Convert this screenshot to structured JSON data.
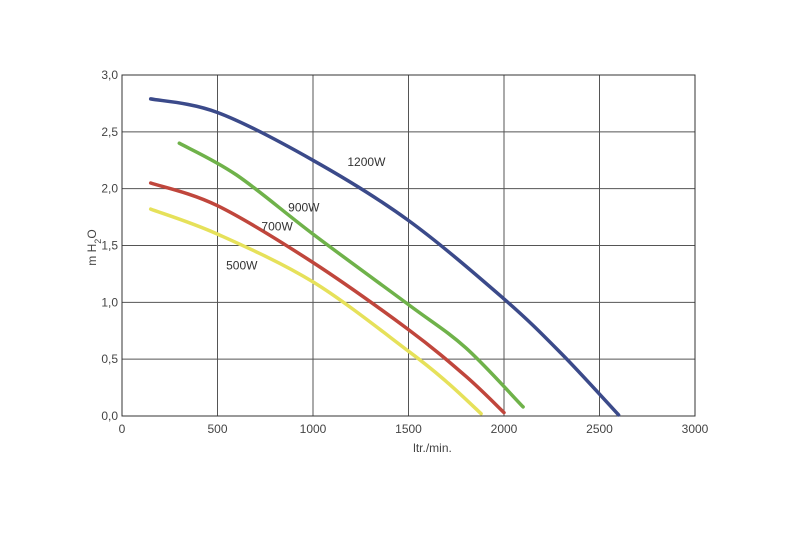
{
  "chart_data": {
    "type": "line",
    "xlabel": "ltr./min.",
    "ylabel_main": "m H",
    "ylabel_sub": "2",
    "ylabel_end": "O",
    "xlim": [
      0,
      3000
    ],
    "ylim": [
      0,
      3.0
    ],
    "x_ticks": [
      {
        "value": 0,
        "label": "0"
      },
      {
        "value": 500,
        "label": "500"
      },
      {
        "value": 1000,
        "label": "1000"
      },
      {
        "value": 1500,
        "label": "1500"
      },
      {
        "value": 2000,
        "label": "2000"
      },
      {
        "value": 2500,
        "label": "2500"
      },
      {
        "value": 3000,
        "label": "3000"
      }
    ],
    "y_ticks": [
      {
        "value": 0,
        "label": "0,0"
      },
      {
        "value": 0.5,
        "label": "0,5"
      },
      {
        "value": 1.0,
        "label": "1,0"
      },
      {
        "value": 1.5,
        "label": "1,5"
      },
      {
        "value": 2.0,
        "label": "2,0"
      },
      {
        "value": 2.5,
        "label": "2,5"
      },
      {
        "value": 3.0,
        "label": "3,0"
      }
    ],
    "grid": true,
    "series": [
      {
        "name": "1200W",
        "color": "#3b4a8a",
        "label_at": [
          1180,
          2.2
        ],
        "points": [
          [
            150,
            2.79
          ],
          [
            500,
            2.67
          ],
          [
            1000,
            2.25
          ],
          [
            1500,
            1.72
          ],
          [
            2000,
            1.03
          ],
          [
            2300,
            0.55
          ],
          [
            2600,
            0.01
          ]
        ]
      },
      {
        "name": "900W",
        "color": "#6fb24a",
        "label_at": [
          870,
          1.8
        ],
        "points": [
          [
            300,
            2.4
          ],
          [
            600,
            2.12
          ],
          [
            1000,
            1.6
          ],
          [
            1500,
            0.98
          ],
          [
            1800,
            0.6
          ],
          [
            2100,
            0.08
          ]
        ]
      },
      {
        "name": "700W",
        "color": "#c0463c",
        "label_at": [
          730,
          1.63
        ],
        "points": [
          [
            150,
            2.05
          ],
          [
            500,
            1.85
          ],
          [
            1000,
            1.35
          ],
          [
            1500,
            0.76
          ],
          [
            1800,
            0.35
          ],
          [
            2000,
            0.03
          ]
        ]
      },
      {
        "name": "500W",
        "color": "#e6e15a",
        "label_at": [
          545,
          1.29
        ],
        "points": [
          [
            150,
            1.82
          ],
          [
            500,
            1.6
          ],
          [
            1000,
            1.18
          ],
          [
            1500,
            0.57
          ],
          [
            1700,
            0.3
          ],
          [
            1880,
            0.02
          ]
        ]
      }
    ]
  }
}
